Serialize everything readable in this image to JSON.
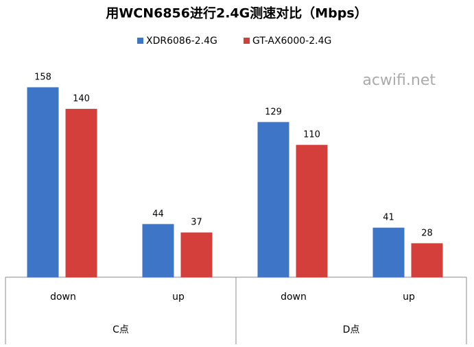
{
  "chart_data": {
    "type": "bar",
    "title": "用WCN6856进行2.4G测速对比（Mbps）",
    "watermark": "acwifi.net",
    "categories": [
      "down",
      "up",
      "down",
      "up"
    ],
    "groups": [
      "C点",
      "D点"
    ],
    "series": [
      {
        "name": "XDR6086-2.4G",
        "color": "#3f75c6",
        "values": [
          158,
          44,
          129,
          41
        ]
      },
      {
        "name": "GT-AX6000-2.4G",
        "color": "#d43f3c",
        "values": [
          140,
          37,
          110,
          28
        ]
      }
    ],
    "legend": "top"
  }
}
